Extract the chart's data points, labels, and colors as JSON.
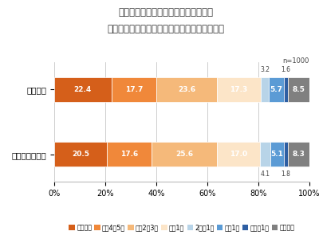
{
  "title_line1": "コロナにより外出制限がされる前と、",
  "title_line2": "コロナが落ち着いてから現在の、お出かけ頻度",
  "n_label": "n=1000",
  "categories": [
    "コロナ前",
    "コロナ後～現在"
  ],
  "series": [
    {
      "label": "ほぼ毎日",
      "color": "#d55f1a",
      "values": [
        22.4,
        20.5
      ]
    },
    {
      "label": "週に4・5日",
      "color": "#f0883a",
      "values": [
        17.7,
        17.6
      ]
    },
    {
      "label": "週に2・3日",
      "color": "#f5b97a",
      "values": [
        23.6,
        25.6
      ]
    },
    {
      "label": "週に1日",
      "color": "#fce5c8",
      "values": [
        17.3,
        17.0
      ]
    },
    {
      "label": "2週に1日",
      "color": "#b8d4e8",
      "values": [
        3.2,
        4.1
      ]
    },
    {
      "label": "月に1日",
      "color": "#5b9bd5",
      "values": [
        5.7,
        5.1
      ]
    },
    {
      "label": "半年に1日",
      "color": "#2e5fa3",
      "values": [
        1.6,
        1.8
      ]
    },
    {
      "label": "それ以下",
      "color": "#808080",
      "values": [
        8.5,
        8.3
      ]
    }
  ],
  "bar_height": 0.38,
  "background_color": "#ffffff",
  "grid_color": "#bbbbbb",
  "title_fontsize": 8.5,
  "label_fontsize": 6.5,
  "legend_fontsize": 5.8,
  "small_annotation_fontsize": 5.5,
  "ytick_fontsize": 7.5,
  "xtick_fontsize": 7
}
